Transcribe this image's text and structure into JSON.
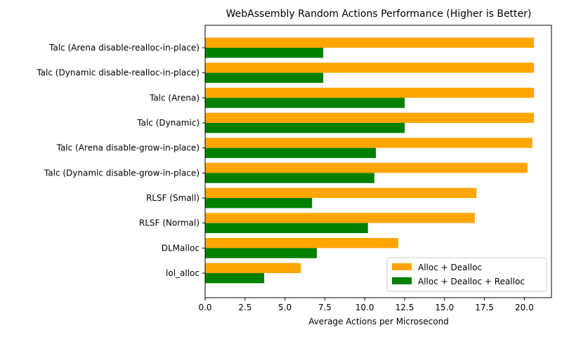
{
  "chart_data": {
    "type": "bar",
    "orientation": "horizontal",
    "title": "WebAssembly Random Actions Performance (Higher is Better)",
    "xlabel": "Average Actions per Microsecond",
    "ylabel": "",
    "xlim": [
      0,
      21.7
    ],
    "xticks": [
      "0.0",
      "2.5",
      "5.0",
      "7.5",
      "10.0",
      "12.5",
      "15.0",
      "17.5",
      "20.0"
    ],
    "categories": [
      "Talc (Arena disable-realloc-in-place)",
      "Talc (Dynamic disable-realloc-in-place)",
      "Talc (Arena)",
      "Talc (Dynamic)",
      "Talc (Arena disable-grow-in-place)",
      "Talc (Dynamic disable-grow-in-place)",
      "RLSF (Small)",
      "RLSF (Normal)",
      "DLMalloc",
      "lol_alloc"
    ],
    "series": [
      {
        "name": "Alloc + Dealloc",
        "color": "#ffa500",
        "values": [
          20.6,
          20.6,
          20.6,
          20.6,
          20.5,
          20.2,
          17.0,
          16.9,
          12.1,
          6.0
        ]
      },
      {
        "name": "Alloc + Dealloc + Realloc",
        "color": "#008000",
        "values": [
          7.4,
          7.4,
          12.5,
          12.5,
          10.7,
          10.6,
          6.7,
          10.2,
          7.0,
          3.7
        ]
      }
    ],
    "grid": false,
    "legend_position": "bottom-right"
  }
}
